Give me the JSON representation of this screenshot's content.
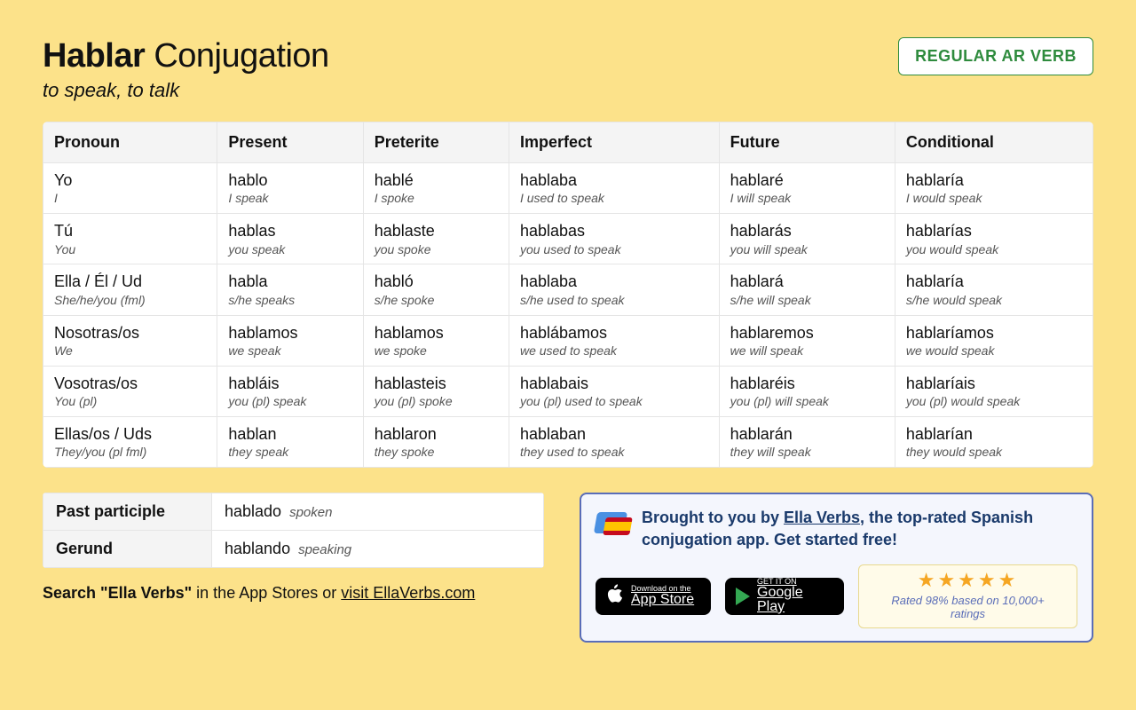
{
  "title_verb": "Hablar",
  "title_rest": " Conjugation",
  "subtitle": "to speak, to talk",
  "badge": "REGULAR AR VERB",
  "columns": [
    "Pronoun",
    "Present",
    "Preterite",
    "Imperfect",
    "Future",
    "Conditional"
  ],
  "rows": [
    [
      {
        "m": "Yo",
        "g": "I"
      },
      {
        "m": "hablo",
        "g": "I speak"
      },
      {
        "m": "hablé",
        "g": "I spoke"
      },
      {
        "m": "hablaba",
        "g": "I used to speak"
      },
      {
        "m": "hablaré",
        "g": "I will speak"
      },
      {
        "m": "hablaría",
        "g": "I would speak"
      }
    ],
    [
      {
        "m": "Tú",
        "g": "You"
      },
      {
        "m": "hablas",
        "g": "you speak"
      },
      {
        "m": "hablaste",
        "g": "you spoke"
      },
      {
        "m": "hablabas",
        "g": "you used to speak"
      },
      {
        "m": "hablarás",
        "g": "you will speak"
      },
      {
        "m": "hablarías",
        "g": "you would speak"
      }
    ],
    [
      {
        "m": "Ella / Él / Ud",
        "g": "She/he/you (fml)"
      },
      {
        "m": "habla",
        "g": "s/he speaks"
      },
      {
        "m": "habló",
        "g": "s/he spoke"
      },
      {
        "m": "hablaba",
        "g": "s/he used to speak"
      },
      {
        "m": "hablará",
        "g": "s/he will speak"
      },
      {
        "m": "hablaría",
        "g": "s/he would speak"
      }
    ],
    [
      {
        "m": "Nosotras/os",
        "g": "We"
      },
      {
        "m": "hablamos",
        "g": "we speak"
      },
      {
        "m": "hablamos",
        "g": "we spoke"
      },
      {
        "m": "hablábamos",
        "g": "we used to speak"
      },
      {
        "m": "hablaremos",
        "g": "we will speak"
      },
      {
        "m": "hablaríamos",
        "g": "we would speak"
      }
    ],
    [
      {
        "m": "Vosotras/os",
        "g": "You (pl)"
      },
      {
        "m": "habláis",
        "g": "you (pl) speak"
      },
      {
        "m": "hablasteis",
        "g": "you (pl) spoke"
      },
      {
        "m": "hablabais",
        "g": "you (pl) used to speak"
      },
      {
        "m": "hablaréis",
        "g": "you (pl) will speak"
      },
      {
        "m": "hablaríais",
        "g": "you (pl) would speak"
      }
    ],
    [
      {
        "m": "Ellas/os / Uds",
        "g": "They/you (pl fml)"
      },
      {
        "m": "hablan",
        "g": "they speak"
      },
      {
        "m": "hablaron",
        "g": "they spoke"
      },
      {
        "m": "hablaban",
        "g": "they used to speak"
      },
      {
        "m": "hablarán",
        "g": "they will speak"
      },
      {
        "m": "hablarían",
        "g": "they would speak"
      }
    ]
  ],
  "participles": [
    {
      "label": "Past participle",
      "val": "hablado",
      "gloss": "spoken"
    },
    {
      "label": "Gerund",
      "val": "hablando",
      "gloss": "speaking"
    }
  ],
  "search_prefix": "Search ",
  "search_quoted": "\"Ella Verbs\"",
  "search_mid": " in the App Stores or ",
  "search_link": "visit EllaVerbs.com",
  "promo_prefix": "Brought to you by ",
  "promo_link": "Ella Verbs",
  "promo_suffix": ", the top-rated Spanish conjugation app. Get started free!",
  "appstore_small": "Download on the",
  "appstore_big": "App Store",
  "play_small": "GET IT ON",
  "play_big": "Google Play",
  "stars": "★★★★★",
  "rating_text": "Rated 98% based on 10,000+ ratings"
}
